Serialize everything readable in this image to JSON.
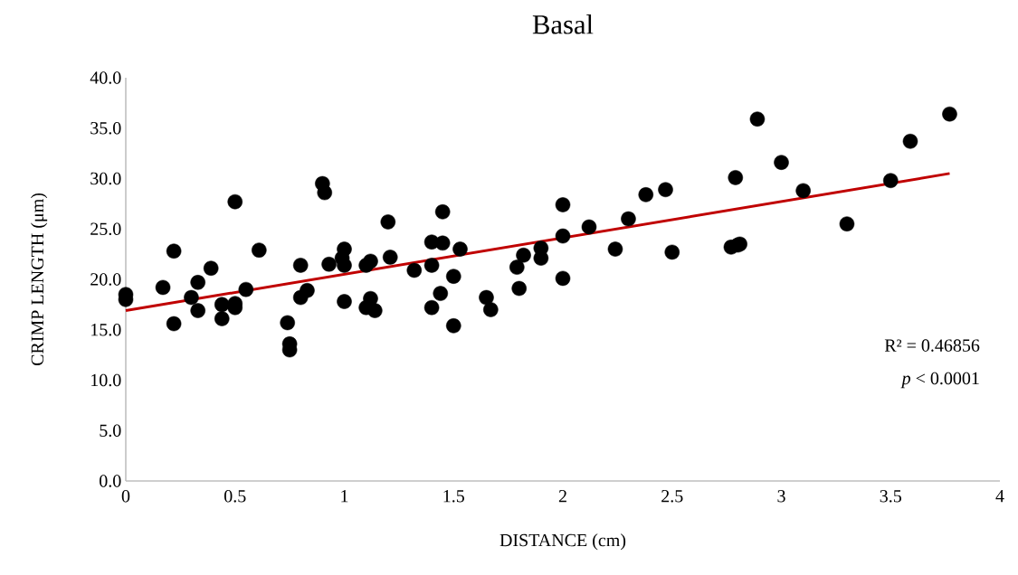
{
  "chart_data": {
    "type": "scatter",
    "title": "Basal",
    "xlabel": "DISTANCE  (cm)",
    "ylabel": "CRIMP LENGTH (μm)",
    "annotations": [
      "R² = 0.46856",
      "*p* < 0.0001"
    ],
    "xlim": [
      0,
      4
    ],
    "ylim": [
      0,
      40
    ],
    "xticks": [
      0,
      0.5,
      1,
      1.5,
      2,
      2.5,
      3,
      3.5,
      4
    ],
    "yticks": [
      {
        "value": 0,
        "label": "0.0"
      },
      {
        "value": 5,
        "label": "5.0"
      },
      {
        "value": 10,
        "label": "10.0"
      },
      {
        "value": 15,
        "label": "15.0"
      },
      {
        "value": 20,
        "label": "20.0"
      },
      {
        "value": 25,
        "label": "25.0"
      },
      {
        "value": 30,
        "label": "30.0"
      },
      {
        "value": 35,
        "label": "35.0"
      },
      {
        "value": 40,
        "label": "40.0"
      }
    ],
    "grid": false,
    "series": [
      {
        "marker": "circle",
        "color": "#000000",
        "x": [
          0,
          0,
          0.17,
          0.22,
          0.22,
          0.3,
          0.33,
          0.33,
          0.39,
          0.44,
          0.44,
          0.5,
          0.5,
          0.5,
          0.55,
          0.61,
          0.74,
          0.75,
          0.75,
          0.8,
          0.8,
          0.83,
          0.9,
          0.91,
          0.93,
          0.99,
          1.0,
          1.0,
          1.0,
          1.1,
          1.1,
          1.12,
          1.12,
          1.14,
          1.2,
          1.21,
          1.32,
          1.4,
          1.4,
          1.4,
          1.44,
          1.45,
          1.45,
          1.5,
          1.5,
          1.53,
          1.65,
          1.67,
          1.79,
          1.8,
          1.82,
          1.9,
          1.9,
          2.0,
          2.0,
          2.0,
          2.12,
          2.24,
          2.3,
          2.38,
          2.47,
          2.5,
          2.77,
          2.79,
          2.8,
          2.81,
          2.89,
          3.0,
          3.1,
          3.3,
          3.5,
          3.59,
          3.77
        ],
        "values": [
          18.5,
          18.0,
          19.2,
          22.8,
          15.6,
          18.2,
          19.7,
          16.9,
          21.1,
          17.5,
          16.1,
          27.7,
          17.6,
          17.2,
          19.0,
          22.9,
          15.7,
          13.6,
          13.0,
          21.4,
          18.2,
          18.9,
          29.5,
          28.6,
          21.5,
          22.1,
          23.0,
          21.4,
          17.8,
          17.2,
          21.4,
          21.8,
          18.1,
          16.9,
          25.7,
          22.2,
          20.9,
          23.7,
          21.4,
          17.2,
          18.6,
          26.7,
          23.6,
          20.3,
          15.4,
          23.0,
          18.2,
          17.0,
          21.2,
          19.1,
          22.4,
          23.1,
          22.1,
          27.4,
          24.3,
          20.1,
          25.2,
          23.0,
          26.0,
          28.4,
          28.9,
          22.7,
          23.2,
          30.1,
          23.4,
          23.5,
          35.9,
          31.6,
          28.8,
          25.5,
          29.8,
          33.7,
          36.4
        ]
      },
      {
        "type": "line",
        "marker": "none",
        "color": "#c00000",
        "x": [
          0,
          3.77
        ],
        "values": [
          16.9,
          30.5
        ]
      }
    ]
  }
}
